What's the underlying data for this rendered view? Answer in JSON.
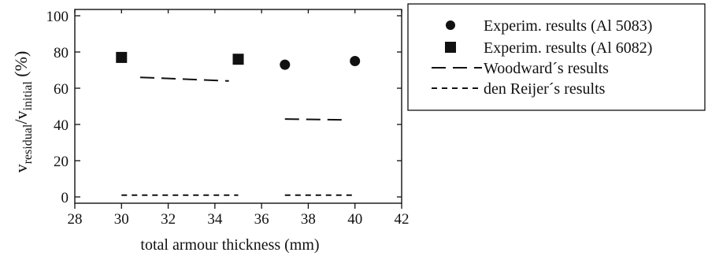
{
  "chart_data": {
    "type": "scatter",
    "xlabel": "total armour thickness (mm)",
    "ylabel": {
      "parts": [
        "v",
        "residual",
        "/v",
        "initial",
        " (%)"
      ]
    },
    "xlim": [
      28,
      42
    ],
    "ylim": [
      0,
      100
    ],
    "xticks": [
      28,
      30,
      32,
      34,
      36,
      38,
      40,
      42
    ],
    "yticks": [
      0,
      20,
      40,
      60,
      80,
      100
    ],
    "grid": false,
    "legend_position": "top-right, outside plot",
    "series": [
      {
        "name": "Experim. results (Al 5083)",
        "marker": "circle",
        "points": [
          [
            37,
            73
          ],
          [
            40,
            75
          ]
        ]
      },
      {
        "name": "Experim. results (Al 6082)",
        "marker": "square",
        "points": [
          [
            30,
            77
          ],
          [
            35,
            76
          ]
        ]
      },
      {
        "name": "Woodward´s results",
        "style": "long-dash",
        "segments": [
          [
            [
              30.8,
              66
            ],
            [
              34.6,
              64
            ]
          ],
          [
            [
              37,
              43
            ],
            [
              39.6,
              42.5
            ]
          ]
        ]
      },
      {
        "name": "den Reijer´s results",
        "style": "short-dash",
        "segments": [
          [
            [
              30,
              1
            ],
            [
              35,
              1
            ]
          ],
          [
            [
              37,
              1
            ],
            [
              40,
              1
            ]
          ]
        ]
      }
    ]
  }
}
